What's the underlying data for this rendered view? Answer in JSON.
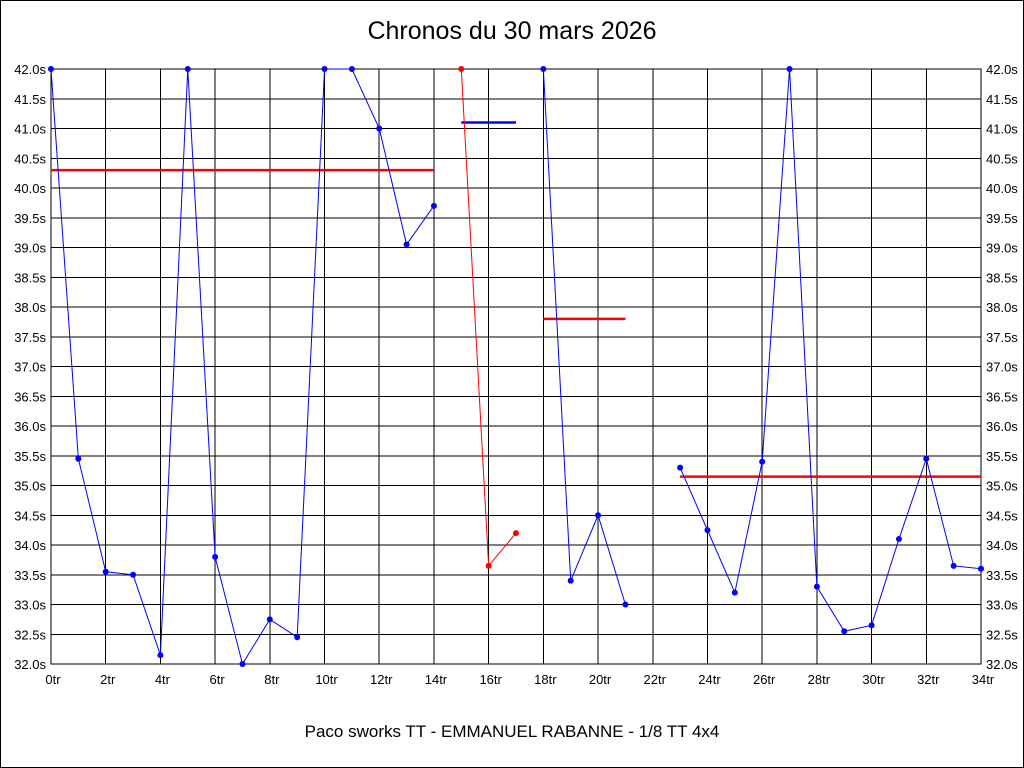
{
  "title": "Chronos du 30 mars 2026",
  "footer": "Paco sworks TT - EMMANUEL RABANNE - 1/8 TT 4x4",
  "colors": {
    "blue": "#0000ff",
    "red": "#ff0000",
    "grid": "#000000",
    "background": "#ffffff",
    "text": "#000000"
  },
  "chart_data": {
    "type": "line",
    "title": "Chronos du 30 mars 2026",
    "x_unit": "tr",
    "y_unit": "s",
    "xlim": [
      0,
      34
    ],
    "ylim": [
      32.0,
      42.0
    ],
    "y_step": 0.5,
    "grid": true,
    "y_ticks": [
      42.0,
      41.5,
      41.0,
      40.5,
      40.0,
      39.5,
      39.0,
      38.5,
      38.0,
      37.5,
      37.0,
      36.5,
      36.0,
      35.5,
      35.0,
      34.5,
      34.0,
      33.5,
      33.0,
      32.5,
      32.0
    ],
    "y_tick_labels": [
      "42.0s",
      "41.5s",
      "41.0s",
      "40.5s",
      "40.0s",
      "39.5s",
      "39.0s",
      "38.5s",
      "38.0s",
      "37.5s",
      "37.0s",
      "36.5s",
      "36.0s",
      "35.5s",
      "35.0s",
      "34.5s",
      "34.0s",
      "33.5s",
      "33.0s",
      "32.5s",
      "32.0s"
    ],
    "x_ticks": [
      0,
      2,
      4,
      6,
      8,
      10,
      12,
      14,
      16,
      18,
      20,
      22,
      24,
      26,
      28,
      30,
      32,
      34
    ],
    "x_tick_labels": [
      "0tr",
      "2tr",
      "4tr",
      "6tr",
      "8tr",
      "10tr",
      "12tr",
      "14tr",
      "16tr",
      "18tr",
      "20tr",
      "22tr",
      "24tr",
      "26tr",
      "28tr",
      "30tr",
      "32tr",
      "34tr"
    ],
    "series": [
      {
        "name": "run-1-blue",
        "color": "#0000ff",
        "points": [
          [
            0,
            42.0
          ],
          [
            1,
            35.45
          ],
          [
            2,
            33.55
          ],
          [
            3,
            33.5
          ],
          [
            4,
            32.15
          ],
          [
            5,
            42.0
          ],
          [
            6,
            33.8
          ],
          [
            7,
            32.0
          ],
          [
            8,
            32.75
          ],
          [
            9,
            32.45
          ],
          [
            10,
            42.0
          ],
          [
            11,
            42.0
          ],
          [
            12,
            41.0
          ],
          [
            13,
            39.05
          ],
          [
            14,
            39.7
          ]
        ]
      },
      {
        "name": "run-2-red",
        "color": "#ff0000",
        "points": [
          [
            15,
            42.0
          ],
          [
            16,
            33.65
          ],
          [
            17,
            34.2
          ]
        ]
      },
      {
        "name": "run-3-blue",
        "color": "#0000ff",
        "points": [
          [
            18,
            42.0
          ],
          [
            19,
            33.4
          ],
          [
            20,
            34.5
          ],
          [
            21,
            33.0
          ]
        ]
      },
      {
        "name": "run-4-blue",
        "color": "#0000ff",
        "points": [
          [
            23,
            35.3
          ],
          [
            24,
            34.25
          ],
          [
            25,
            33.2
          ],
          [
            26,
            35.4
          ],
          [
            27,
            42.0
          ],
          [
            28,
            33.3
          ],
          [
            29,
            32.55
          ],
          [
            30,
            32.65
          ],
          [
            31,
            34.1
          ],
          [
            32,
            35.45
          ],
          [
            33,
            33.65
          ],
          [
            34,
            33.6
          ]
        ]
      }
    ],
    "average_lines": [
      {
        "name": "average-run-1",
        "from": 0,
        "to": 14,
        "value": 40.3,
        "color": "#ff0000"
      },
      {
        "name": "average-run-2",
        "from": 15,
        "to": 17,
        "value": 41.1,
        "color": "#0000ff"
      },
      {
        "name": "average-run-3",
        "from": 18,
        "to": 21,
        "value": 37.8,
        "color": "#ff0000"
      },
      {
        "name": "average-run-4",
        "from": 23,
        "to": 34,
        "value": 35.15,
        "color": "#ff0000"
      }
    ],
    "legend": "none"
  }
}
